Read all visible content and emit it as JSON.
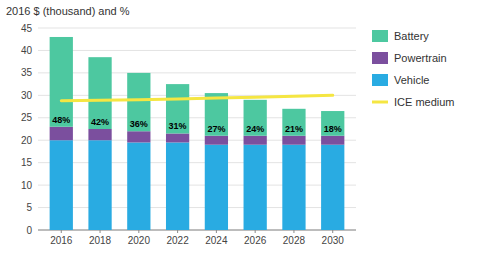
{
  "chart_data": {
    "type": "bar",
    "stacked": true,
    "ylabel": "2016 $ (thousand) and %",
    "x": [
      2016,
      2018,
      2020,
      2022,
      2024,
      2026,
      2028,
      2030
    ],
    "xlim": [
      2014.8,
      2031.2
    ],
    "xticks": [
      2016,
      2018,
      2020,
      2022,
      2024,
      2026,
      2028,
      2030
    ],
    "ylim": [
      0,
      45
    ],
    "yticks": [
      0,
      5,
      10,
      15,
      20,
      25,
      30,
      35,
      40,
      45
    ],
    "grid": true,
    "legend": "right",
    "series": [
      {
        "name": "Vehicle",
        "type": "bar",
        "color": "#29ABE2",
        "values": [
          20.0,
          20.0,
          19.5,
          19.5,
          19.0,
          19.0,
          19.0,
          19.0
        ]
      },
      {
        "name": "Powertrain",
        "type": "bar",
        "color": "#7B4F9E",
        "values": [
          3.0,
          2.5,
          2.5,
          2.0,
          2.0,
          2.0,
          2.0,
          2.0
        ]
      },
      {
        "name": "Battery",
        "type": "bar",
        "color": "#4DC8A0",
        "values": [
          20.0,
          16.0,
          13.0,
          11.0,
          9.5,
          8.0,
          6.0,
          5.5
        ]
      },
      {
        "name": "ICE medium",
        "type": "line",
        "color": "#F5E642",
        "values": [
          28.8,
          28.9,
          29.0,
          29.2,
          29.4,
          29.6,
          29.8,
          30.0
        ]
      }
    ],
    "annotations": [
      "48%",
      "42%",
      "36%",
      "31%",
      "27%",
      "24%",
      "21%",
      "18%"
    ]
  }
}
